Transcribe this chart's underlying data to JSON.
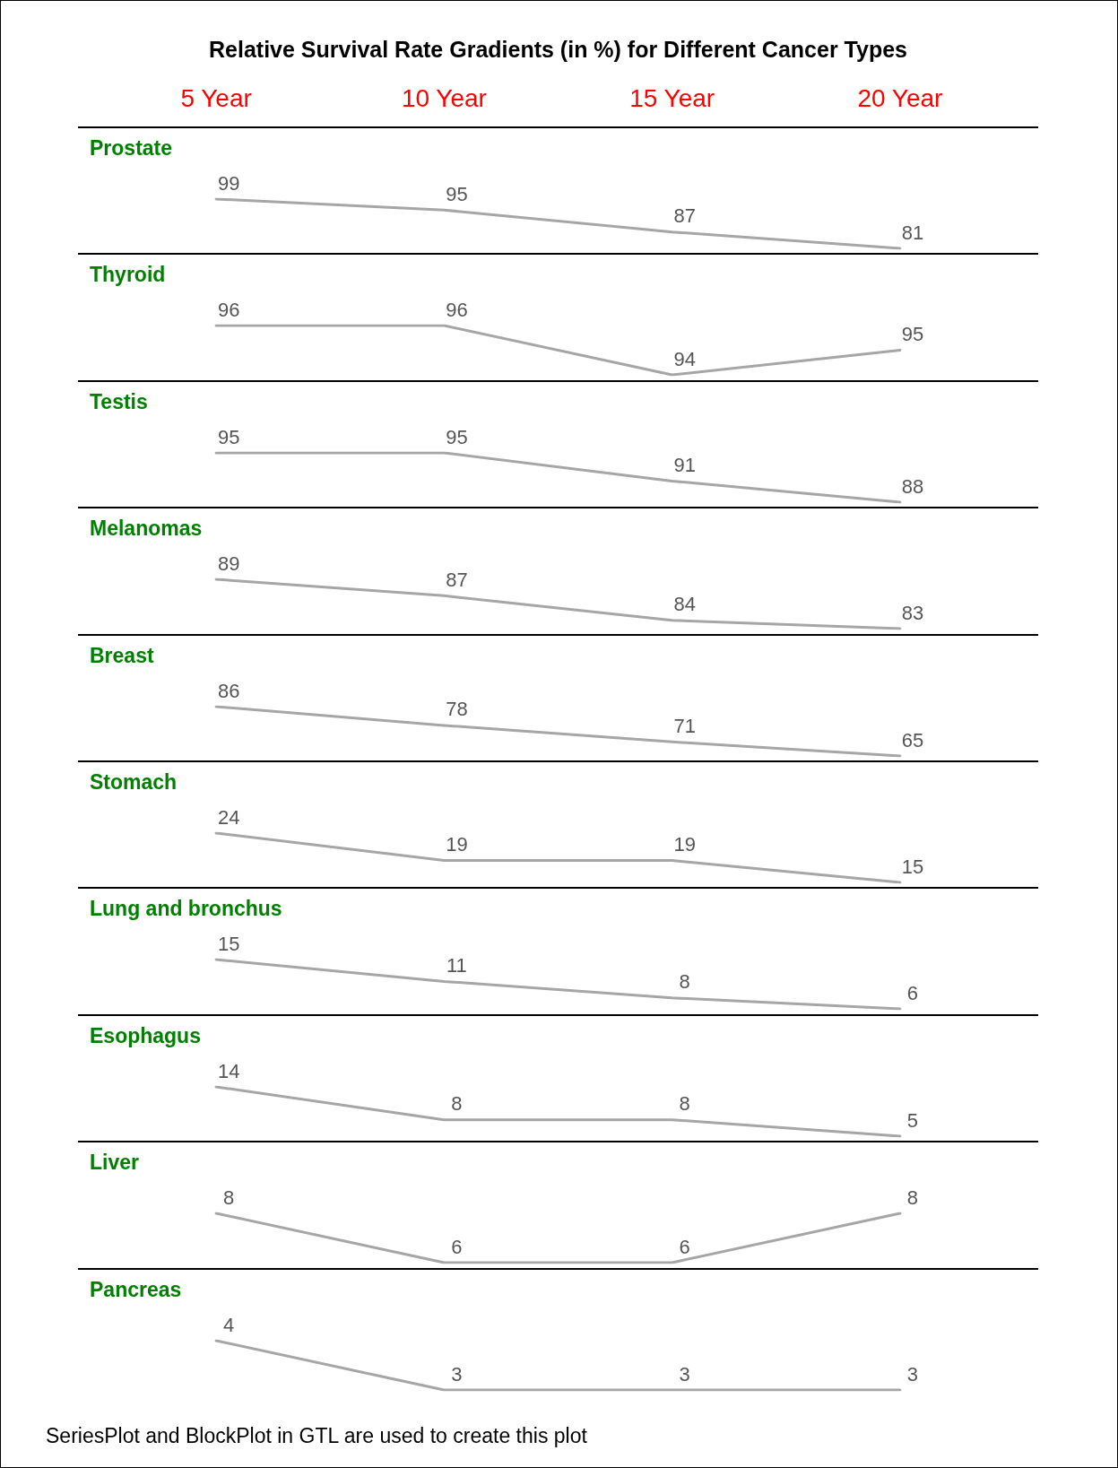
{
  "chart_data": [
    {
      "type": "line",
      "title": "Relative Survival Rate Gradients (in %) for Different Cancer Types",
      "subtitle": "Prostate",
      "categories": [
        "5 Year",
        "10 Year",
        "15 Year",
        "20 Year"
      ],
      "tick_labels": "x",
      "data_labels": true,
      "series": [
        {
          "color": "#a6a6a6",
          "values": [
            99,
            95,
            87,
            81
          ]
        }
      ]
    },
    {
      "type": "line",
      "subtitle": "Thyroid",
      "categories": [
        null,
        null,
        null,
        null
      ],
      "tick_labels": false,
      "data_labels": true,
      "series": [
        {
          "color": "#a6a6a6",
          "values": [
            96,
            96,
            94,
            95
          ]
        }
      ]
    },
    {
      "type": "line",
      "subtitle": "Testis",
      "categories": [
        null,
        null,
        null,
        null
      ],
      "tick_labels": false,
      "data_labels": true,
      "series": [
        {
          "color": "#a6a6a6",
          "values": [
            95,
            95,
            91,
            88
          ]
        }
      ]
    },
    {
      "type": "line",
      "subtitle": "Melanomas",
      "categories": [
        null,
        null,
        null,
        null
      ],
      "tick_labels": false,
      "data_labels": true,
      "series": [
        {
          "color": "#a6a6a6",
          "values": [
            89,
            87,
            84,
            83
          ]
        }
      ]
    },
    {
      "type": "line",
      "subtitle": "Breast",
      "categories": [
        null,
        null,
        null,
        null
      ],
      "tick_labels": false,
      "data_labels": true,
      "series": [
        {
          "color": "#a6a6a6",
          "values": [
            86,
            78,
            71,
            65
          ]
        }
      ]
    },
    {
      "type": "line",
      "subtitle": "Stomach",
      "categories": [
        null,
        null,
        null,
        null
      ],
      "tick_labels": false,
      "data_labels": true,
      "series": [
        {
          "color": "#a6a6a6",
          "values": [
            24,
            19,
            19,
            15
          ]
        }
      ]
    },
    {
      "type": "line",
      "subtitle": "Lung and bronchus",
      "categories": [
        null,
        null,
        null,
        null
      ],
      "tick_labels": false,
      "data_labels": true,
      "series": [
        {
          "color": "#a6a6a6",
          "values": [
            15,
            11,
            8,
            6
          ]
        }
      ]
    },
    {
      "type": "line",
      "subtitle": "Esophagus",
      "categories": [
        null,
        null,
        null,
        null
      ],
      "tick_labels": false,
      "data_labels": true,
      "series": [
        {
          "color": "#a6a6a6",
          "values": [
            14,
            8,
            8,
            5
          ]
        }
      ]
    },
    {
      "type": "line",
      "subtitle": "Liver",
      "categories": [
        null,
        null,
        null,
        null
      ],
      "tick_labels": false,
      "data_labels": true,
      "series": [
        {
          "color": "#a6a6a6",
          "values": [
            8,
            6,
            6,
            8
          ]
        }
      ]
    },
    {
      "type": "line",
      "subtitle": "Pancreas",
      "categories": [
        null,
        null,
        null,
        null
      ],
      "tick_labels": false,
      "data_labels": true,
      "series": [
        {
          "color": "#a6a6a6",
          "values": [
            4,
            3,
            3,
            3
          ]
        }
      ],
      "annotations": [
        "SeriesPlot and BlockPlot in GTL are used to create this plot"
      ]
    }
  ]
}
